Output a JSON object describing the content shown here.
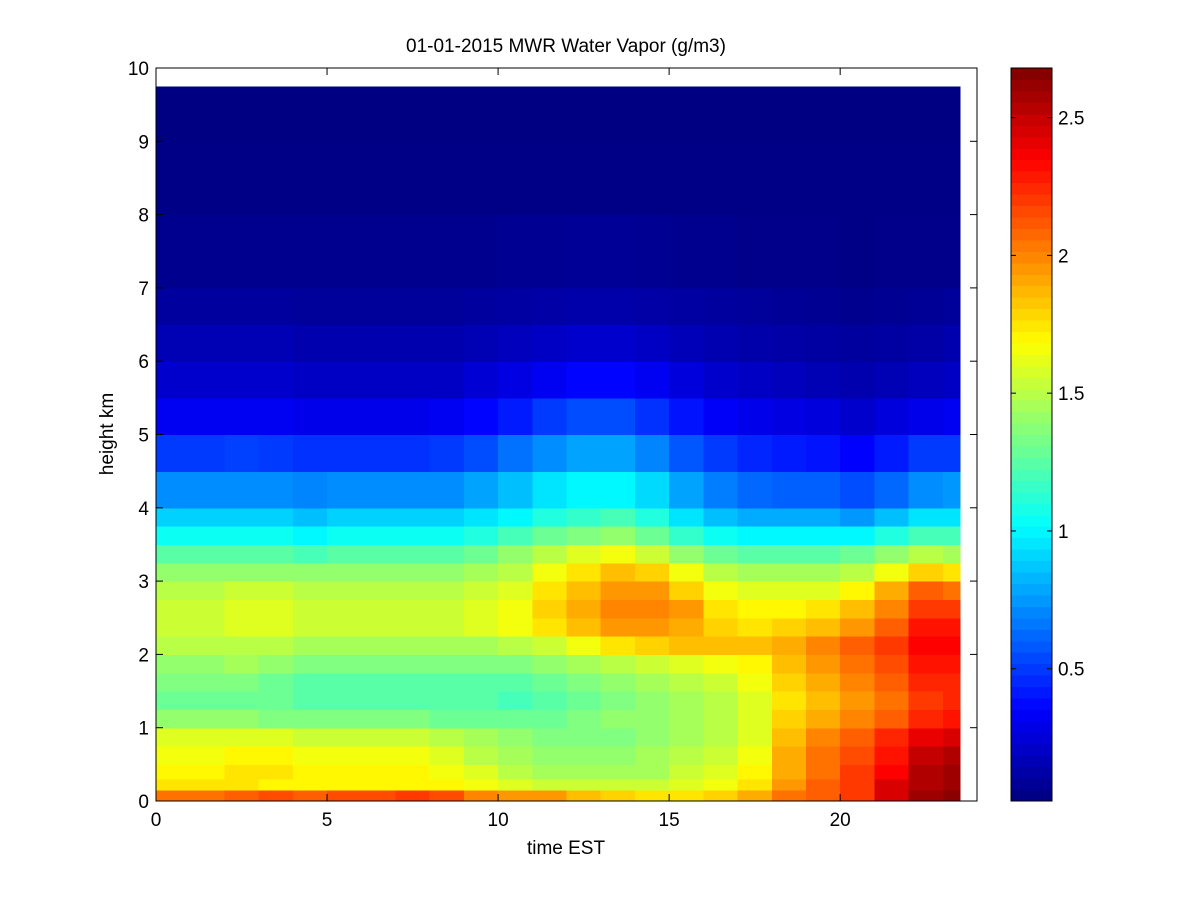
{
  "chart_data": {
    "type": "heatmap",
    "title": "01-01-2015 MWR Water Vapor (g/m3)",
    "xlabel": "time EST",
    "ylabel": "height km",
    "xlim": [
      0,
      24
    ],
    "ylim": [
      0,
      10
    ],
    "x_ticks": [
      "0",
      "5",
      "10",
      "15",
      "20"
    ],
    "y_ticks": [
      "0",
      "1",
      "2",
      "3",
      "4",
      "5",
      "6",
      "7",
      "8",
      "9",
      "10"
    ],
    "colormap": "jet",
    "colorbar": {
      "min": 0.02,
      "max": 2.68,
      "ticks": [
        "0.5",
        "1",
        "1.5",
        "2",
        "2.5"
      ]
    },
    "data_extent": {
      "x": [
        0,
        23.5
      ],
      "y": [
        0,
        9.75
      ]
    },
    "heights_km": [
      0.0,
      0.15,
      0.3,
      0.5,
      0.75,
      1.0,
      1.25,
      1.5,
      1.75,
      2.0,
      2.25,
      2.5,
      2.75,
      3.0,
      3.25,
      3.5,
      3.75,
      4.0,
      4.5,
      5.0,
      5.5,
      6.0,
      6.5,
      7.0,
      8.0,
      9.0,
      9.75
    ],
    "times_est": [
      0,
      1,
      2,
      3,
      4,
      5,
      6,
      7,
      8,
      9,
      10,
      11,
      12,
      13,
      14,
      15,
      16,
      17,
      18,
      19,
      20,
      21,
      22,
      23,
      23.5
    ],
    "values": [
      [
        2.05,
        2.05,
        2.1,
        2.15,
        2.1,
        2.15,
        2.15,
        2.2,
        2.15,
        2.0,
        1.95,
        1.95,
        1.85,
        1.8,
        1.75,
        1.75,
        1.8,
        1.9,
        2.05,
        2.1,
        2.2,
        2.45,
        2.6,
        2.65
      ],
      [
        1.75,
        1.75,
        1.75,
        1.7,
        1.7,
        1.7,
        1.7,
        1.7,
        1.7,
        1.65,
        1.6,
        1.55,
        1.55,
        1.55,
        1.55,
        1.6,
        1.65,
        1.75,
        1.95,
        2.1,
        2.2,
        2.45,
        2.55,
        2.6
      ],
      [
        1.7,
        1.7,
        1.75,
        1.75,
        1.7,
        1.7,
        1.7,
        1.7,
        1.65,
        1.6,
        1.5,
        1.45,
        1.45,
        1.45,
        1.45,
        1.55,
        1.6,
        1.7,
        1.9,
        2.05,
        2.2,
        2.35,
        2.55,
        2.6
      ],
      [
        1.65,
        1.65,
        1.7,
        1.7,
        1.65,
        1.65,
        1.65,
        1.65,
        1.6,
        1.5,
        1.45,
        1.4,
        1.4,
        1.4,
        1.45,
        1.5,
        1.55,
        1.65,
        1.9,
        2.05,
        2.15,
        2.3,
        2.5,
        2.55
      ],
      [
        1.6,
        1.6,
        1.6,
        1.6,
        1.55,
        1.55,
        1.55,
        1.55,
        1.5,
        1.45,
        1.4,
        1.35,
        1.35,
        1.35,
        1.4,
        1.45,
        1.5,
        1.6,
        1.85,
        2.0,
        2.1,
        2.25,
        2.4,
        2.45
      ],
      [
        1.4,
        1.4,
        1.4,
        1.35,
        1.35,
        1.35,
        1.35,
        1.35,
        1.3,
        1.3,
        1.3,
        1.3,
        1.35,
        1.4,
        1.4,
        1.45,
        1.5,
        1.6,
        1.8,
        1.9,
        2.0,
        2.1,
        2.25,
        2.3
      ],
      [
        1.3,
        1.3,
        1.3,
        1.3,
        1.25,
        1.25,
        1.25,
        1.25,
        1.25,
        1.25,
        1.2,
        1.25,
        1.3,
        1.35,
        1.4,
        1.45,
        1.5,
        1.6,
        1.75,
        1.85,
        1.95,
        2.05,
        2.2,
        2.25
      ],
      [
        1.35,
        1.35,
        1.35,
        1.3,
        1.25,
        1.25,
        1.25,
        1.25,
        1.25,
        1.25,
        1.25,
        1.3,
        1.35,
        1.4,
        1.45,
        1.5,
        1.55,
        1.65,
        1.8,
        1.9,
        2.0,
        2.1,
        2.25,
        2.25
      ],
      [
        1.4,
        1.4,
        1.45,
        1.4,
        1.35,
        1.35,
        1.35,
        1.35,
        1.35,
        1.35,
        1.35,
        1.4,
        1.45,
        1.5,
        1.55,
        1.6,
        1.65,
        1.7,
        1.85,
        1.95,
        2.05,
        2.15,
        2.3,
        2.3
      ],
      [
        1.5,
        1.5,
        1.5,
        1.5,
        1.45,
        1.45,
        1.45,
        1.45,
        1.45,
        1.45,
        1.5,
        1.55,
        1.65,
        1.75,
        1.8,
        1.85,
        1.85,
        1.85,
        1.9,
        2.0,
        2.1,
        2.2,
        2.35,
        2.35
      ],
      [
        1.55,
        1.55,
        1.6,
        1.6,
        1.55,
        1.55,
        1.55,
        1.55,
        1.55,
        1.6,
        1.65,
        1.75,
        1.85,
        1.95,
        1.95,
        1.9,
        1.8,
        1.75,
        1.8,
        1.85,
        1.95,
        2.1,
        2.3,
        2.3
      ],
      [
        1.55,
        1.55,
        1.6,
        1.6,
        1.55,
        1.55,
        1.55,
        1.55,
        1.55,
        1.6,
        1.65,
        1.8,
        1.9,
        2.0,
        2.0,
        1.95,
        1.75,
        1.7,
        1.7,
        1.75,
        1.85,
        2.0,
        2.2,
        2.2
      ],
      [
        1.5,
        1.5,
        1.55,
        1.55,
        1.5,
        1.5,
        1.5,
        1.5,
        1.5,
        1.55,
        1.6,
        1.75,
        1.85,
        1.95,
        1.95,
        1.8,
        1.65,
        1.6,
        1.6,
        1.6,
        1.7,
        1.9,
        2.1,
        2.05
      ],
      [
        1.4,
        1.4,
        1.4,
        1.4,
        1.4,
        1.4,
        1.4,
        1.4,
        1.4,
        1.45,
        1.5,
        1.65,
        1.75,
        1.85,
        1.8,
        1.65,
        1.5,
        1.45,
        1.45,
        1.45,
        1.5,
        1.65,
        1.8,
        1.75
      ],
      [
        1.25,
        1.25,
        1.25,
        1.25,
        1.2,
        1.25,
        1.25,
        1.25,
        1.25,
        1.3,
        1.4,
        1.5,
        1.6,
        1.65,
        1.55,
        1.4,
        1.3,
        1.25,
        1.25,
        1.25,
        1.3,
        1.4,
        1.5,
        1.45
      ],
      [
        1.05,
        1.05,
        1.05,
        1.05,
        1.0,
        1.05,
        1.05,
        1.05,
        1.05,
        1.1,
        1.2,
        1.3,
        1.35,
        1.4,
        1.3,
        1.15,
        1.05,
        1.0,
        1.0,
        1.0,
        1.0,
        1.1,
        1.2,
        1.2
      ],
      [
        0.9,
        0.9,
        0.9,
        0.9,
        0.85,
        0.9,
        0.9,
        0.9,
        0.9,
        0.95,
        1.0,
        1.1,
        1.15,
        1.2,
        1.1,
        0.95,
        0.85,
        0.8,
        0.8,
        0.8,
        0.75,
        0.85,
        0.95,
        0.95
      ],
      [
        0.72,
        0.72,
        0.72,
        0.72,
        0.7,
        0.72,
        0.72,
        0.72,
        0.72,
        0.78,
        0.85,
        0.95,
        1.0,
        1.0,
        0.92,
        0.78,
        0.68,
        0.62,
        0.6,
        0.6,
        0.55,
        0.62,
        0.72,
        0.75
      ],
      [
        0.5,
        0.5,
        0.52,
        0.5,
        0.48,
        0.48,
        0.48,
        0.48,
        0.5,
        0.55,
        0.65,
        0.72,
        0.78,
        0.78,
        0.7,
        0.58,
        0.5,
        0.45,
        0.42,
        0.4,
        0.35,
        0.42,
        0.5,
        0.5
      ],
      [
        0.32,
        0.32,
        0.32,
        0.32,
        0.3,
        0.3,
        0.3,
        0.3,
        0.32,
        0.36,
        0.42,
        0.5,
        0.55,
        0.55,
        0.48,
        0.4,
        0.34,
        0.3,
        0.28,
        0.26,
        0.22,
        0.26,
        0.3,
        0.32
      ],
      [
        0.22,
        0.22,
        0.22,
        0.22,
        0.2,
        0.2,
        0.2,
        0.2,
        0.2,
        0.24,
        0.28,
        0.32,
        0.36,
        0.36,
        0.32,
        0.26,
        0.22,
        0.2,
        0.18,
        0.16,
        0.14,
        0.16,
        0.18,
        0.2
      ],
      [
        0.16,
        0.16,
        0.16,
        0.16,
        0.14,
        0.14,
        0.14,
        0.14,
        0.14,
        0.16,
        0.18,
        0.2,
        0.22,
        0.22,
        0.2,
        0.17,
        0.15,
        0.13,
        0.12,
        0.11,
        0.1,
        0.11,
        0.12,
        0.14
      ],
      [
        0.1,
        0.1,
        0.1,
        0.1,
        0.09,
        0.09,
        0.09,
        0.09,
        0.09,
        0.1,
        0.11,
        0.12,
        0.13,
        0.13,
        0.12,
        0.11,
        0.1,
        0.09,
        0.08,
        0.07,
        0.06,
        0.07,
        0.08,
        0.09
      ],
      [
        0.06,
        0.06,
        0.06,
        0.06,
        0.06,
        0.06,
        0.06,
        0.06,
        0.06,
        0.06,
        0.07,
        0.07,
        0.08,
        0.08,
        0.07,
        0.06,
        0.06,
        0.05,
        0.05,
        0.05,
        0.04,
        0.05,
        0.05,
        0.05
      ],
      [
        0.04,
        0.04,
        0.04,
        0.04,
        0.04,
        0.04,
        0.04,
        0.04,
        0.04,
        0.04,
        0.04,
        0.04,
        0.04,
        0.04,
        0.04,
        0.04,
        0.04,
        0.04,
        0.04,
        0.04,
        0.04,
        0.04,
        0.04,
        0.04
      ],
      [
        0.03,
        0.03,
        0.03,
        0.03,
        0.03,
        0.03,
        0.03,
        0.03,
        0.03,
        0.03,
        0.03,
        0.03,
        0.03,
        0.03,
        0.03,
        0.03,
        0.03,
        0.03,
        0.03,
        0.03,
        0.03,
        0.03,
        0.03,
        0.03
      ]
    ]
  }
}
